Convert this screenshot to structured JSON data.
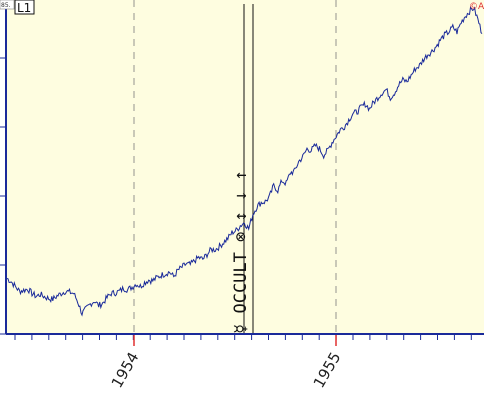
{
  "header": {
    "scale_tag": "85.",
    "pane_label": "L1",
    "corner_mark": "©A"
  },
  "event_label": "☿ OCCULT ⊗ ↕ ↓ ↑",
  "colors": {
    "plot_background": "#fefde0",
    "series_line": "#1a2a9a",
    "axis_line": "#1a2a9a",
    "year_gridline": "#7a7a7a",
    "year_tick": "#e03030",
    "event_line": "#111111",
    "corner_mark": "#e03030"
  },
  "chart_data": {
    "type": "line",
    "title": "",
    "xlabel": "",
    "ylabel": "",
    "x_year_ticks": [
      "1954",
      "1955"
    ],
    "y_tick_count": 5,
    "grid": {
      "vertical_year_lines": true,
      "horizontal": false
    },
    "events": [
      {
        "at": "late 1954",
        "lines": 2
      }
    ],
    "series": [
      {
        "values": [
          0.155,
          0.145,
          0.13,
          0.115,
          0.118,
          0.122,
          0.108,
          0.099,
          0.105,
          0.098,
          0.092,
          0.09,
          0.1,
          0.108,
          0.115,
          0.112,
          0.108,
          0.082,
          0.045,
          0.06,
          0.075,
          0.085,
          0.07,
          0.078,
          0.095,
          0.108,
          0.11,
          0.115,
          0.124,
          0.12,
          0.128,
          0.138,
          0.13,
          0.142,
          0.15,
          0.148,
          0.158,
          0.165,
          0.17,
          0.175,
          0.16,
          0.18,
          0.19,
          0.2,
          0.198,
          0.21,
          0.22,
          0.215,
          0.23,
          0.245,
          0.245,
          0.255,
          0.268,
          0.28,
          0.298,
          0.305,
          0.32,
          0.33,
          0.31,
          0.355,
          0.38,
          0.392,
          0.395,
          0.41,
          0.445,
          0.43,
          0.46,
          0.452,
          0.485,
          0.49,
          0.52,
          0.535,
          0.56,
          0.555,
          0.57,
          0.56,
          0.54,
          0.555,
          0.58,
          0.6,
          0.62,
          0.63,
          0.65,
          0.67,
          0.675,
          0.69,
          0.7,
          0.685,
          0.705,
          0.72,
          0.735,
          0.745,
          0.72,
          0.735,
          0.76,
          0.775,
          0.77,
          0.79,
          0.81,
          0.82,
          0.84,
          0.855,
          0.865,
          0.88,
          0.9,
          0.915,
          0.925,
          0.94,
          0.925,
          0.955,
          0.975,
          0.99,
          1.0,
          0.965,
          0.92
        ]
      }
    ]
  }
}
